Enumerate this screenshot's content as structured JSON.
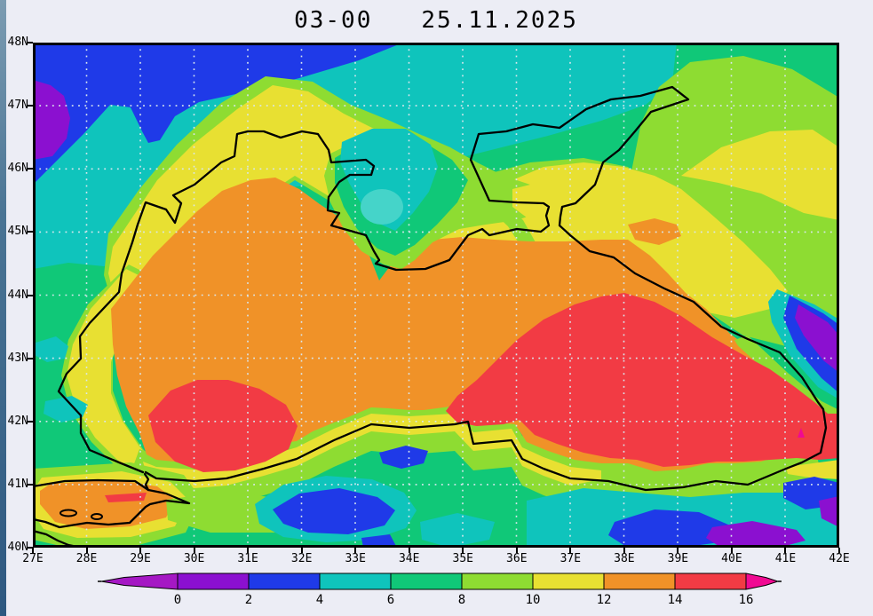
{
  "window": {
    "background": "#ECEDF5",
    "edge_strip_colors": [
      "#7C9CB2",
      "#2E5880"
    ]
  },
  "title": {
    "time": "03-00",
    "date": "25.11.2025"
  },
  "map": {
    "lat_labels": [
      "48N",
      "47N",
      "46N",
      "45N",
      "44N",
      "43N",
      "42N",
      "41N",
      "40N"
    ],
    "lon_labels": [
      "27E",
      "28E",
      "29E",
      "30E",
      "31E",
      "32E",
      "33E",
      "34E",
      "35E",
      "36E",
      "37E",
      "38E",
      "39E",
      "40E",
      "41E",
      "42E"
    ]
  },
  "colorbar": {
    "labels": [
      "0",
      "2",
      "4",
      "6",
      "8",
      "10",
      "12",
      "14",
      "16"
    ],
    "palette": [
      {
        "range": "<0",
        "color": "#A518C4"
      },
      {
        "range": "0-2",
        "color": "#8B10D0"
      },
      {
        "range": "2-4",
        "color": "#1F3AE8"
      },
      {
        "range": "4-6",
        "color": "#0FC4BC"
      },
      {
        "range": "6-8",
        "color": "#10C878"
      },
      {
        "range": "8-10",
        "color": "#8EDC32"
      },
      {
        "range": "10-12",
        "color": "#E8E032"
      },
      {
        "range": "12-14",
        "color": "#F09228"
      },
      {
        "range": "14-16",
        "color": "#F23B44"
      },
      {
        "range": ">16",
        "color": "#F00A92"
      }
    ]
  },
  "chart_data": {
    "type": "heatmap",
    "subtype": "filled-contour geographic field",
    "region": "Black Sea",
    "title": "03-00 25.11.2025",
    "lon_range": [
      27,
      42
    ],
    "lat_range": [
      40,
      48
    ],
    "grid_step_deg": 1,
    "grid": "dotted",
    "colorbar_levels": [
      0,
      2,
      4,
      6,
      8,
      10,
      12,
      14,
      16
    ],
    "colorbar_open_ended": true,
    "legend_position": "bottom",
    "field_features": [
      "Open-sea western/central basin mostly 12-14 (orange)",
      "Eastern basin and a patch off the SW coast (29.5-31.5E, 41.8-42.6N) at 14-16 (red); red extends inland over Georgia to 42E",
      "Tiny >16 (magenta) spot near 41.3E, 42.1N",
      "Coastal/NW-shelf waters and south Azov 10-12 (yellow)",
      "NW land coldest: 2-4 (blue) band 27-34.5E north of 46.3N with 0-2 (purple) pocket at 27E, 46.7-47.5N",
      "4-6 (teal) band south of the blue area and over central Crimea / Karkinit Bay",
      "Cold Caucasus stripes at 41-42E, 43.3-44.5N reaching 0-2 (purple)",
      "Cold pockets 2-4 (blue) and 0-2 (purple) over NE Turkey along 40-40.6N between 31.5E and 41.5E",
      "Land NE of Azov 10-12 (yellow); upper-right quadrant mostly 8-10 (yellow-green)",
      "Warm 12-14 (orange) with 14-16 streak around the Sea of Marmara (27-29E, 40.4-41N)"
    ]
  }
}
